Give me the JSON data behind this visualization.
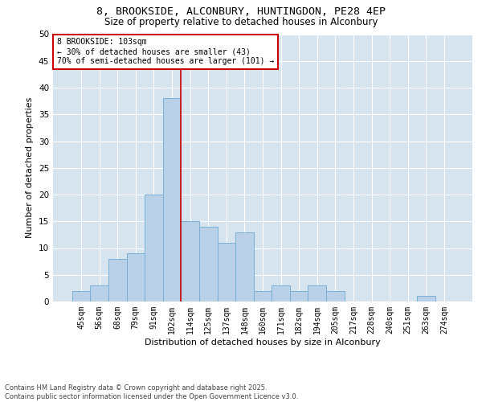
{
  "title_line1": "8, BROOKSIDE, ALCONBURY, HUNTINGDON, PE28 4EP",
  "title_line2": "Size of property relative to detached houses in Alconbury",
  "xlabel": "Distribution of detached houses by size in Alconbury",
  "ylabel": "Number of detached properties",
  "bar_color": "#b8d0e8",
  "bar_edge_color": "#7aafd4",
  "background_color": "#d6e4f0",
  "annotation_box_color": "#cc0000",
  "vline_color": "#cc0000",
  "categories": [
    "45sqm",
    "56sqm",
    "68sqm",
    "79sqm",
    "91sqm",
    "102sqm",
    "114sqm",
    "125sqm",
    "137sqm",
    "148sqm",
    "160sqm",
    "171sqm",
    "182sqm",
    "194sqm",
    "205sqm",
    "217sqm",
    "228sqm",
    "240sqm",
    "251sqm",
    "263sqm",
    "274sqm"
  ],
  "values": [
    2,
    3,
    8,
    9,
    20,
    38,
    15,
    14,
    11,
    13,
    2,
    3,
    2,
    3,
    2,
    0,
    0,
    0,
    0,
    1,
    0
  ],
  "vline_position": 5.5,
  "annotation_text": "8 BROOKSIDE: 103sqm\n← 30% of detached houses are smaller (43)\n70% of semi-detached houses are larger (101) →",
  "ylim": [
    0,
    50
  ],
  "yticks": [
    0,
    5,
    10,
    15,
    20,
    25,
    30,
    35,
    40,
    45,
    50
  ],
  "footer": "Contains HM Land Registry data © Crown copyright and database right 2025.\nContains public sector information licensed under the Open Government Licence v3.0.",
  "grid_color": "#ffffff",
  "title_fontsize": 9.5,
  "subtitle_fontsize": 8.5,
  "tick_fontsize": 7,
  "label_fontsize": 8,
  "annotation_fontsize": 7,
  "footer_fontsize": 6
}
